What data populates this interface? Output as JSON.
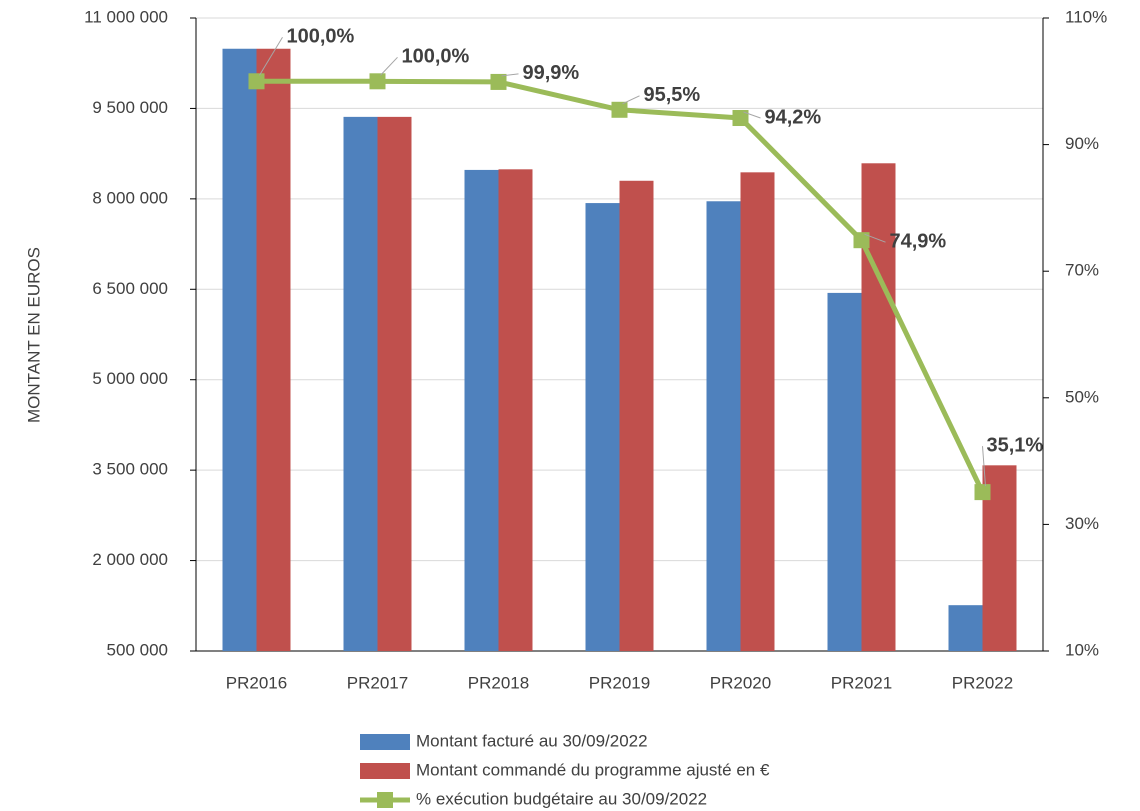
{
  "chart_data": {
    "type": "bar",
    "y_label": "MONTANT EN EUROS",
    "categories": [
      "PR2016",
      "PR2017",
      "PR2018",
      "PR2019",
      "PR2020",
      "PR2021",
      "PR2022"
    ],
    "series": [
      {
        "name": "Montant facturé au 30/09/2022",
        "color": "#4f81bd",
        "values": [
          10490000,
          9360000,
          8480000,
          7930000,
          7960000,
          6440000,
          1260000
        ]
      },
      {
        "name": "Montant commandé du programme ajusté en €",
        "color": "#c0504d",
        "values": [
          10490000,
          9360000,
          8490000,
          8300000,
          8440000,
          8590000,
          3580000
        ]
      },
      {
        "name": "% exécution budgétaire au 30/09/2022",
        "color": "#9bbb59",
        "type": "line",
        "axis": "y2",
        "values": [
          100.0,
          100.0,
          99.9,
          95.5,
          94.2,
          74.9,
          35.1
        ],
        "value_labels": [
          "100,0%",
          "100,0%",
          "99,9%",
          "95,5%",
          "94,2%",
          "74,9%",
          "35,1%"
        ]
      }
    ],
    "ylim": [
      500000,
      11000000
    ],
    "yticks": [
      {
        "value": 500000,
        "label": "500 000"
      },
      {
        "value": 2000000,
        "label": "2 000 000"
      },
      {
        "value": 3500000,
        "label": "3 500 000"
      },
      {
        "value": 5000000,
        "label": "5 000 000"
      },
      {
        "value": 6500000,
        "label": "6 500 000"
      },
      {
        "value": 8000000,
        "label": "8 000 000"
      },
      {
        "value": 9500000,
        "label": "9 500 000"
      },
      {
        "value": 11000000,
        "label": "11 000 000"
      }
    ],
    "y2lim": [
      10,
      110
    ],
    "y2ticks": [
      {
        "value": 10,
        "label": "10%"
      },
      {
        "value": 30,
        "label": "30%"
      },
      {
        "value": 50,
        "label": "50%"
      },
      {
        "value": 70,
        "label": "70%"
      },
      {
        "value": 90,
        "label": "90%"
      },
      {
        "value": 110,
        "label": "110%"
      }
    ],
    "grid": true,
    "legend": "bottom"
  }
}
